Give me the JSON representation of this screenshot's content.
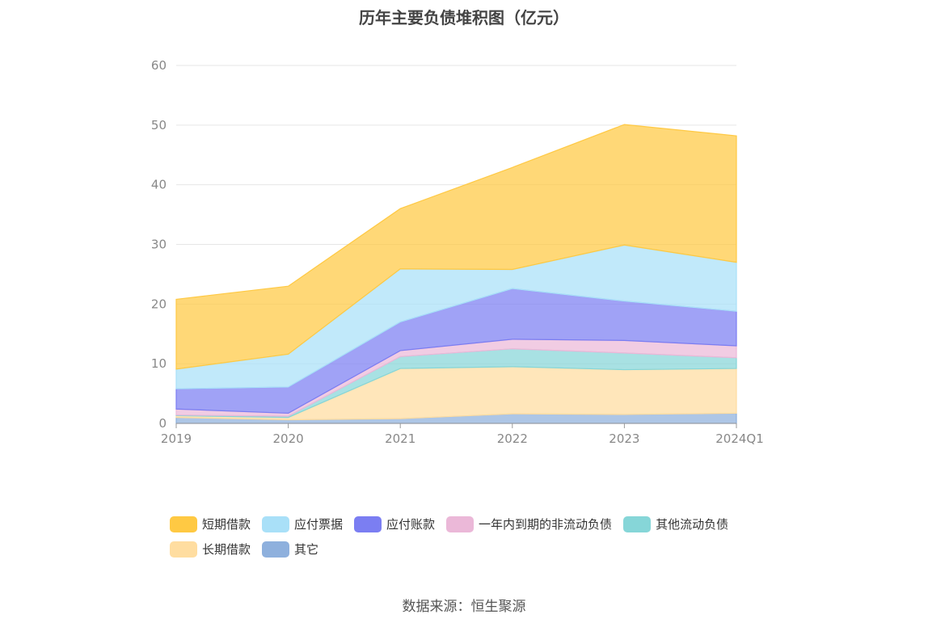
{
  "title": "历年主要负债堆积图（亿元）",
  "source": "数据来源：恒生聚源",
  "chart_data": {
    "type": "area",
    "stacked": true,
    "categories": [
      "2019",
      "2020",
      "2021",
      "2022",
      "2023",
      "2024Q1"
    ],
    "ylim": [
      0,
      60
    ],
    "yticks": [
      0,
      10,
      20,
      30,
      40,
      50,
      60
    ],
    "grid": true,
    "legend_position": "bottom",
    "series": [
      {
        "name": "其它",
        "color": "#8eb0dd",
        "values": [
          1.0,
          0.6,
          0.8,
          1.6,
          1.5,
          1.7
        ]
      },
      {
        "name": "长期借款",
        "color": "#ffdda0",
        "values": [
          0.3,
          0.4,
          8.4,
          7.9,
          7.5,
          7.5
        ]
      },
      {
        "name": "其他流动负债",
        "color": "#86d6d8",
        "values": [
          0.1,
          0.2,
          2.0,
          3.0,
          2.8,
          1.8
        ]
      },
      {
        "name": "一年内到期的非流动负债",
        "color": "#ebb8d8",
        "values": [
          1.0,
          0.5,
          1.0,
          1.6,
          2.1,
          2.0
        ]
      },
      {
        "name": "应付账款",
        "color": "#7b7ef2",
        "values": [
          3.4,
          4.4,
          4.8,
          8.5,
          6.6,
          5.8
        ]
      },
      {
        "name": "应付票据",
        "color": "#a9e0f8",
        "values": [
          3.3,
          5.5,
          8.9,
          3.2,
          9.4,
          8.2
        ]
      },
      {
        "name": "短期借款",
        "color": "#ffc943",
        "values": [
          11.7,
          11.4,
          10.1,
          17.1,
          20.2,
          21.2
        ]
      }
    ],
    "legend_order": [
      "短期借款",
      "应付票据",
      "应付账款",
      "一年内到期的非流动负债",
      "其他流动负债",
      "长期借款",
      "其它"
    ]
  }
}
